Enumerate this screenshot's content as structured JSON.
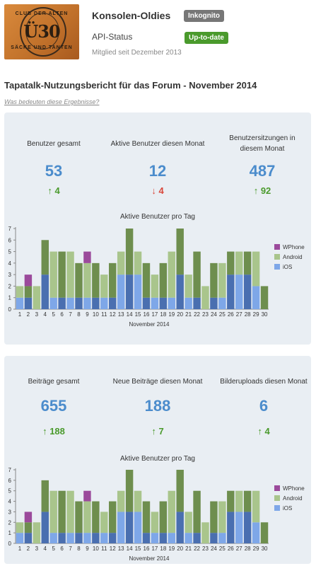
{
  "header": {
    "logo_top_text": "CLUB DER ALTEN",
    "logo_main_text": "Ü30",
    "logo_bottom_text": "SÄCKE UND TANTEN",
    "forum_name": "Konsolen-Oldies",
    "incognito_badge": "Inkognito",
    "api_status_label": "API-Status",
    "api_status_badge": "Up-to-date",
    "member_since": "Mitglied seit Dezember 2013"
  },
  "report": {
    "title": "Tapatalk-Nutzungsbericht für das Forum - November 2014",
    "help_link": "Was bedeuten diese Ergebnisse?"
  },
  "colors": {
    "android": "#a9c58c",
    "android_dark": "#6e8e4e",
    "ios": "#7ea7e8",
    "ios_dark": "#4a6fb0",
    "wphone": "#9b4a9b",
    "up": "#4a9a2c",
    "down": "#d9473a",
    "value": "#4b8ccc"
  },
  "panel1": {
    "stats": [
      {
        "label_line1": "Benutzer gesamt",
        "label_line2": "",
        "value": "53",
        "delta": "4",
        "direction": "up"
      },
      {
        "label_line1": "Aktive Benutzer diesen Monat",
        "label_line2": "",
        "value": "12",
        "delta": "4",
        "direction": "down"
      },
      {
        "label_line1": "Benutzersitzungen in",
        "label_line2": "diesem Monat",
        "value": "487",
        "delta": "92",
        "direction": "up"
      }
    ],
    "chart_title": "Aktive Benutzer pro Tag"
  },
  "panel2": {
    "stats": [
      {
        "label_line1": "Beiträge gesamt",
        "label_line2": "",
        "value": "655",
        "delta": "188",
        "direction": "up"
      },
      {
        "label_line1": "Neue Beiträge diesen Monat",
        "label_line2": "",
        "value": "188",
        "delta": "7",
        "direction": "up"
      },
      {
        "label_line1": "Bilderuploads diesen Monat",
        "label_line2": "",
        "value": "6",
        "delta": "4",
        "direction": "up"
      }
    ],
    "chart_title": "Aktive Benutzer pro Tag"
  },
  "chart_data": [
    {
      "type": "bar",
      "title": "Aktive Benutzer pro Tag",
      "xlabel": "November 2014",
      "ylabel": "",
      "stacked": true,
      "ylim": [
        0,
        7
      ],
      "yticks": [
        0,
        1,
        2,
        3,
        4,
        5,
        6,
        7
      ],
      "categories": [
        "1",
        "2",
        "3",
        "4",
        "5",
        "6",
        "7",
        "8",
        "9",
        "10",
        "11",
        "12",
        "13",
        "14",
        "15",
        "16",
        "17",
        "18",
        "19",
        "20",
        "21",
        "22",
        "23",
        "24",
        "25",
        "26",
        "27",
        "28",
        "29",
        "30"
      ],
      "series": [
        {
          "name": "iOS",
          "values": [
            1,
            1,
            0,
            3,
            1,
            1,
            1,
            1,
            1,
            1,
            1,
            1,
            3,
            3,
            3,
            1,
            1,
            1,
            1,
            3,
            1,
            1,
            0,
            1,
            1,
            3,
            3,
            3,
            2,
            0
          ]
        },
        {
          "name": "Android",
          "values": [
            1,
            1,
            2,
            3,
            4,
            4,
            4,
            3,
            3,
            3,
            2,
            3,
            2,
            4,
            2,
            3,
            2,
            3,
            4,
            4,
            2,
            4,
            2,
            3,
            3,
            2,
            2,
            2,
            3,
            2
          ]
        },
        {
          "name": "WPhone",
          "values": [
            0,
            1,
            0,
            0,
            0,
            0,
            0,
            0,
            1,
            0,
            0,
            0,
            0,
            0,
            0,
            0,
            0,
            0,
            0,
            0,
            0,
            0,
            0,
            0,
            0,
            0,
            0,
            0,
            0,
            0
          ]
        }
      ],
      "legend": "right",
      "grid": false
    },
    {
      "type": "bar",
      "title": "Aktive Benutzer pro Tag",
      "xlabel": "November 2014",
      "ylabel": "",
      "stacked": true,
      "ylim": [
        0,
        7
      ],
      "yticks": [
        0,
        1,
        2,
        3,
        4,
        5,
        6,
        7
      ],
      "categories": [
        "1",
        "2",
        "3",
        "4",
        "5",
        "6",
        "7",
        "8",
        "9",
        "10",
        "11",
        "12",
        "13",
        "14",
        "15",
        "16",
        "17",
        "18",
        "19",
        "20",
        "21",
        "22",
        "23",
        "24",
        "25",
        "26",
        "27",
        "28",
        "29",
        "30"
      ],
      "series": [
        {
          "name": "iOS",
          "values": [
            1,
            1,
            0,
            3,
            1,
            1,
            1,
            1,
            1,
            1,
            1,
            1,
            3,
            3,
            3,
            1,
            1,
            1,
            1,
            3,
            1,
            1,
            0,
            1,
            1,
            3,
            3,
            3,
            2,
            0
          ]
        },
        {
          "name": "Android",
          "values": [
            1,
            1,
            2,
            3,
            4,
            4,
            4,
            3,
            3,
            3,
            2,
            3,
            2,
            4,
            2,
            3,
            2,
            3,
            4,
            4,
            2,
            4,
            2,
            3,
            3,
            2,
            2,
            2,
            3,
            2
          ]
        },
        {
          "name": "WPhone",
          "values": [
            0,
            1,
            0,
            0,
            0,
            0,
            0,
            0,
            1,
            0,
            0,
            0,
            0,
            0,
            0,
            0,
            0,
            0,
            0,
            0,
            0,
            0,
            0,
            0,
            0,
            0,
            0,
            0,
            0,
            0
          ]
        }
      ],
      "legend": "right",
      "grid": false
    }
  ]
}
